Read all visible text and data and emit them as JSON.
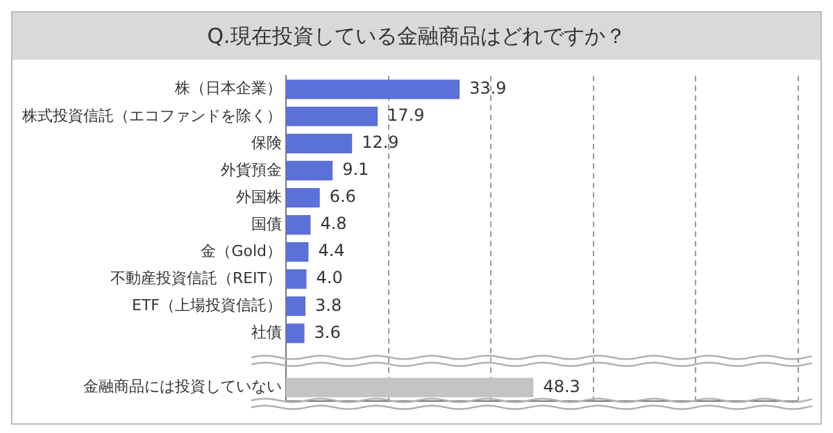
{
  "chart_data": {
    "type": "bar",
    "orientation": "horizontal",
    "title": "Q.現在投資している金融商品はどれですか？",
    "categories": [
      "株（日本企業）",
      "株式投資信託（エコファンドを除く）",
      "保険",
      "外貨預金",
      "外国株",
      "国債",
      "金（Gold）",
      "不動産投資信託（REIT）",
      "ETF（上場投資信託）",
      "社債",
      null,
      "金融商品には投資していない"
    ],
    "values": [
      33.9,
      17.9,
      12.9,
      9.1,
      6.6,
      4.8,
      4.4,
      4.0,
      3.8,
      3.6,
      null,
      48.3
    ],
    "colors": [
      "#5b70d9",
      "#5b70d9",
      "#5b70d9",
      "#5b70d9",
      "#5b70d9",
      "#5b70d9",
      "#5b70d9",
      "#5b70d9",
      "#5b70d9",
      "#5b70d9",
      "#5b70d9",
      "#c4c4c4"
    ],
    "xlim": [
      0,
      100
    ],
    "xticks": [
      {
        "value": 0,
        "label": null
      },
      {
        "value": 20,
        "label": null
      },
      {
        "value": 40,
        "label": null
      },
      {
        "value": 60,
        "label": null
      },
      {
        "value": 80,
        "label": null
      },
      {
        "value": 100,
        "label": null
      }
    ],
    "value_labels": [
      "33.9",
      "17.9",
      "12.9",
      "9.1",
      "6.6",
      "4.8",
      "4.4",
      "4.0",
      "3.8",
      "3.6",
      null,
      "48.3"
    ],
    "grid": "x",
    "tick_labels": "y"
  }
}
